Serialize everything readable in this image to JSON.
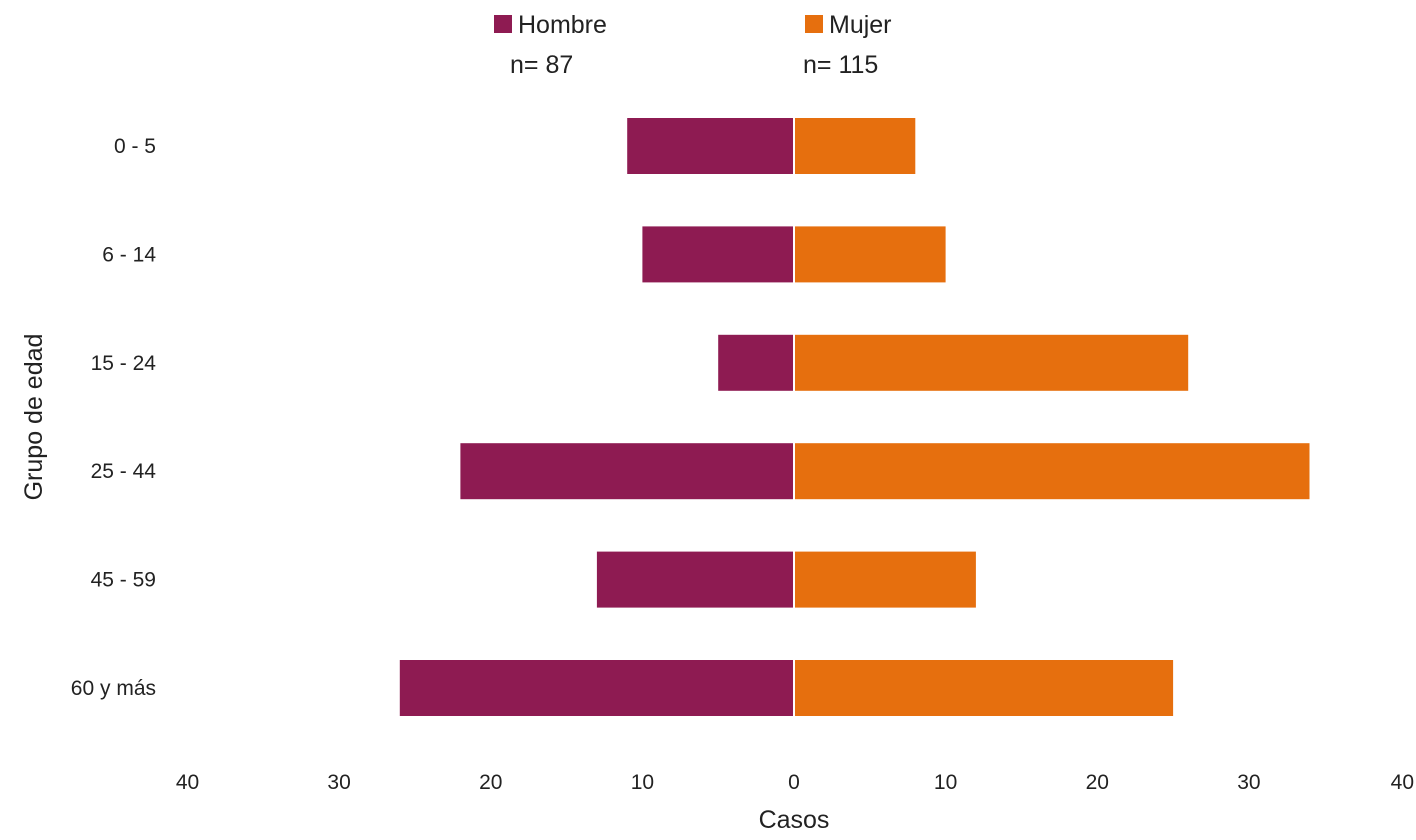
{
  "chart_data": {
    "type": "bar",
    "orientation": "horizontal-diverging",
    "categories": [
      "0 - 5",
      "6 - 14",
      "15 - 24",
      "25 - 44",
      "45 - 59",
      "60 y más"
    ],
    "series": [
      {
        "name": "Hombre",
        "n_label": "n= 87",
        "color": "#8E1B52",
        "side": "left",
        "values": [
          11,
          10,
          5,
          22,
          13,
          26
        ]
      },
      {
        "name": "Mujer",
        "n_label": "n= 115",
        "color": "#E66F0E",
        "side": "right",
        "values": [
          8,
          10,
          26,
          34,
          12,
          25
        ]
      }
    ],
    "x_ticks": [
      "40",
      "30",
      "20",
      "10",
      "0",
      "10",
      "20",
      "30",
      "40"
    ],
    "xlim": [
      -40,
      40
    ],
    "xlabel": "Casos",
    "ylabel": "Grupo de edad",
    "grid": false,
    "legend_position": "top"
  }
}
